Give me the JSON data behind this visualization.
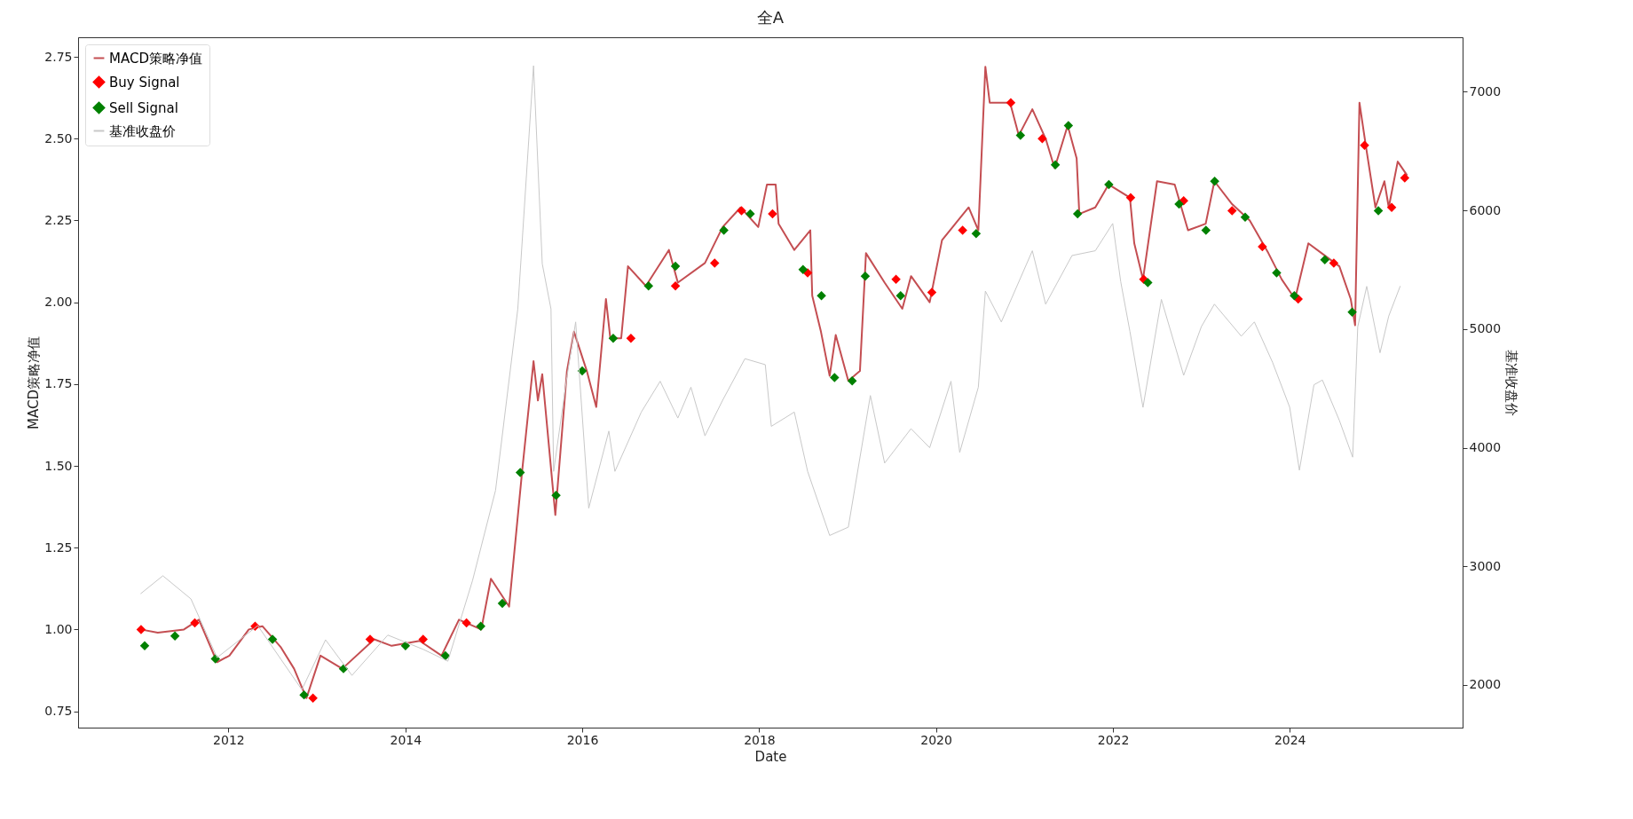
{
  "chart_data": {
    "type": "line",
    "title": "全A",
    "xlabel": "Date",
    "ylabel": "MACD策略净值",
    "y2label": "基准收盘价",
    "legend": "top left",
    "xlim": [
      "2010-04-20",
      "2025-12-15"
    ],
    "xticks": [
      "2012",
      "2014",
      "2016",
      "2018",
      "2020",
      "2022",
      "2024"
    ],
    "ylim": [
      0.7,
      2.81
    ],
    "yticks": [
      {
        "value": 0.75,
        "label": "0.75"
      },
      {
        "value": 1,
        "label": "1.00"
      },
      {
        "value": 1.25,
        "label": "1.25"
      },
      {
        "value": 1.5,
        "label": "1.50"
      },
      {
        "value": 1.75,
        "label": "1.75"
      },
      {
        "value": 2,
        "label": "2.00"
      },
      {
        "value": 2.25,
        "label": "2.25"
      },
      {
        "value": 2.5,
        "label": "2.50"
      },
      {
        "value": 2.75,
        "label": "2.75"
      }
    ],
    "y2lim": [
      1640,
      7460
    ],
    "y2ticks": [
      2000,
      3000,
      4000,
      5000,
      6000,
      7000
    ],
    "series": [
      {
        "name": "MACD策略净值",
        "color": "#c44e52",
        "x": [
          "2011-01-04",
          "2011-03-15",
          "2011-07-01",
          "2011-09-01",
          "2011-11-15",
          "2012-01-05",
          "2012-03-25",
          "2012-05-20",
          "2012-08-05",
          "2012-09-28",
          "2012-11-18",
          "2013-01-15",
          "2013-04-15",
          "2013-08-25",
          "2013-11-05",
          "2014-03-01",
          "2014-05-30",
          "2014-08-10",
          "2014-11-10",
          "2014-12-20",
          "2015-03-05",
          "2015-04-28",
          "2015-06-14",
          "2015-07-02",
          "2015-07-20",
          "2015-09-12",
          "2015-10-30",
          "2015-11-28",
          "2016-01-20",
          "2016-02-28",
          "2016-04-08",
          "2016-04-26",
          "2016-06-10",
          "2016-07-08",
          "2016-09-20",
          "2016-12-24",
          "2017-01-30",
          "2017-05-22",
          "2017-08-03",
          "2017-10-16",
          "2017-12-28",
          "2018-02-02",
          "2018-03-10",
          "2018-03-22",
          "2018-05-26",
          "2018-07-31",
          "2018-08-08",
          "2018-09-13",
          "2018-10-19",
          "2018-11-13",
          "2019-01-04",
          "2019-02-21",
          "2019-03-18",
          "2019-06-03",
          "2019-08-15",
          "2019-09-20",
          "2019-12-06",
          "2020-01-26",
          "2020-03-21",
          "2020-05-15",
          "2020-06-24",
          "2020-07-23",
          "2020-08-10",
          "2020-11-02",
          "2020-12-08",
          "2021-02-02",
          "2021-03-29",
          "2021-05-05",
          "2021-06-28",
          "2021-08-04",
          "2021-08-15",
          "2021-10-20",
          "2021-12-14",
          "2022-03-12",
          "2022-03-30",
          "2022-05-05",
          "2022-07-02",
          "2022-09-13",
          "2022-11-07",
          "2023-01-19",
          "2023-02-24",
          "2023-05-08",
          "2023-07-20",
          "2023-10-05",
          "2023-11-29",
          "2024-01-23",
          "2024-03-18",
          "2024-05-12",
          "2024-07-24",
          "2024-09-09",
          "2024-09-27",
          "2024-10-15",
          "2024-11-10",
          "2024-12-20",
          "2025-01-26",
          "2025-02-13",
          "2025-03-22",
          "2025-04-28"
        ],
        "values": [
          1.0,
          0.99,
          1.0,
          1.03,
          0.9,
          0.92,
          1.0,
          1.01,
          0.945,
          0.88,
          0.79,
          0.92,
          0.88,
          0.97,
          0.95,
          0.965,
          0.92,
          1.03,
          1.0,
          1.155,
          1.07,
          1.485,
          1.82,
          1.7,
          1.78,
          1.35,
          1.79,
          1.91,
          1.79,
          1.68,
          2.01,
          1.89,
          1.89,
          2.11,
          2.05,
          2.16,
          2.06,
          2.12,
          2.23,
          2.29,
          2.23,
          2.36,
          2.36,
          2.24,
          2.16,
          2.22,
          2.02,
          1.91,
          1.775,
          1.9,
          1.76,
          1.79,
          2.15,
          2.06,
          1.98,
          2.08,
          2.0,
          2.19,
          2.24,
          2.29,
          2.22,
          2.72,
          2.61,
          2.61,
          2.51,
          2.59,
          2.5,
          2.41,
          2.54,
          2.44,
          2.27,
          2.29,
          2.36,
          2.32,
          2.18,
          2.07,
          2.37,
          2.36,
          2.22,
          2.24,
          2.37,
          2.3,
          2.25,
          2.15,
          2.07,
          2.01,
          2.18,
          2.15,
          2.11,
          2.01,
          1.93,
          2.61,
          2.48,
          2.29,
          2.37,
          2.29,
          2.43,
          2.39
        ]
      },
      {
        "name": "Buy Signal",
        "type": "scatter",
        "marker": "diamond",
        "color": "#ff0000",
        "x": [
          "2011-01-05",
          "2011-08-15",
          "2012-04-20",
          "2012-12-15",
          "2013-08-08",
          "2014-03-15",
          "2014-09-10",
          "2016-07-20",
          "2017-01-20",
          "2017-07-01",
          "2017-10-20",
          "2018-02-25",
          "2018-07-20",
          "2019-07-20",
          "2019-12-15",
          "2020-04-20",
          "2020-11-05",
          "2021-03-15",
          "2022-03-15",
          "2022-05-08",
          "2022-10-20",
          "2023-05-08",
          "2023-09-10",
          "2024-02-05",
          "2024-07-01",
          "2024-11-05",
          "2025-02-25",
          "2025-04-20"
        ],
        "values": [
          1.0,
          1.02,
          1.01,
          0.79,
          0.97,
          0.97,
          1.02,
          1.89,
          2.05,
          2.12,
          2.28,
          2.27,
          2.09,
          2.07,
          2.03,
          2.22,
          2.61,
          2.5,
          2.32,
          2.07,
          2.31,
          2.28,
          2.17,
          2.01,
          2.12,
          2.48,
          2.29,
          2.38
        ]
      },
      {
        "name": "Sell Signal",
        "type": "scatter",
        "marker": "diamond",
        "color": "#008000",
        "x": [
          "2011-01-20",
          "2011-05-25",
          "2011-11-08",
          "2012-07-01",
          "2012-11-08",
          "2013-04-20",
          "2014-01-01",
          "2014-06-15",
          "2014-11-08",
          "2015-02-05",
          "2015-04-20",
          "2015-09-15",
          "2016-01-01",
          "2016-05-08",
          "2016-10-01",
          "2017-01-20",
          "2017-08-08",
          "2017-11-25",
          "2018-07-01",
          "2018-09-15",
          "2018-11-08",
          "2019-01-20",
          "2019-03-15",
          "2019-08-08",
          "2020-06-15",
          "2020-12-15",
          "2021-05-08",
          "2021-07-01",
          "2021-08-08",
          "2021-12-15",
          "2022-05-25",
          "2022-10-01",
          "2023-01-20",
          "2023-02-25",
          "2023-07-01",
          "2023-11-08",
          "2024-01-20",
          "2024-05-25",
          "2024-09-15",
          "2025-01-01"
        ],
        "values": [
          0.95,
          0.98,
          0.91,
          0.97,
          0.8,
          0.88,
          0.95,
          0.92,
          1.01,
          1.08,
          1.48,
          1.41,
          1.79,
          1.89,
          2.05,
          2.11,
          2.22,
          2.27,
          2.1,
          2.02,
          1.77,
          1.76,
          2.08,
          2.02,
          2.21,
          2.51,
          2.42,
          2.54,
          2.27,
          2.36,
          2.06,
          2.3,
          2.22,
          2.37,
          2.26,
          2.09,
          2.02,
          2.13,
          1.97,
          2.28
        ]
      },
      {
        "name": "基准收盘价",
        "axis": "y2",
        "color": "#c8c8c8",
        "x": [
          "2011-01-04",
          "2011-04-05",
          "2011-07-30",
          "2011-11-15",
          "2012-05-01",
          "2012-10-30",
          "2013-02-05",
          "2013-05-25",
          "2013-10-20",
          "2014-03-15",
          "2014-06-25",
          "2014-10-05",
          "2015-01-08",
          "2015-04-10",
          "2015-06-14",
          "2015-07-20",
          "2015-08-25",
          "2015-09-05",
          "2015-10-30",
          "2015-12-05",
          "2016-01-28",
          "2016-04-20",
          "2016-05-15",
          "2016-09-01",
          "2016-11-18",
          "2017-01-30",
          "2017-03-25",
          "2017-05-22",
          "2017-08-03",
          "2017-11-03",
          "2018-01-26",
          "2018-02-20",
          "2018-05-26",
          "2018-07-20",
          "2018-10-19",
          "2019-01-04",
          "2019-04-05",
          "2019-06-03",
          "2019-09-20",
          "2019-12-06",
          "2020-03-03",
          "2020-04-08",
          "2020-06-24",
          "2020-07-23",
          "2020-09-27",
          "2021-02-02",
          "2021-03-29",
          "2021-07-16",
          "2021-10-20",
          "2021-12-31",
          "2022-02-02",
          "2022-03-12",
          "2022-05-05",
          "2022-07-20",
          "2022-10-20",
          "2023-01-01",
          "2023-02-24",
          "2023-06-15",
          "2023-08-08",
          "2023-10-22",
          "2024-01-01",
          "2024-02-10",
          "2024-04-10",
          "2024-05-15",
          "2024-07-24",
          "2024-09-17",
          "2024-10-08",
          "2024-11-14",
          "2025-01-08",
          "2025-02-13",
          "2025-04-01"
        ],
        "values": [
          2770,
          2920,
          2725,
          2230,
          2500,
          1960,
          2380,
          2080,
          2420,
          2300,
          2200,
          2880,
          3640,
          5170,
          7220,
          5550,
          5170,
          3800,
          4600,
          5060,
          3490,
          4140,
          3800,
          4300,
          4560,
          4250,
          4510,
          4100,
          4400,
          4750,
          4700,
          4180,
          4300,
          3800,
          3260,
          3330,
          4440,
          3870,
          4160,
          4000,
          4560,
          3960,
          4510,
          5320,
          5060,
          5660,
          5210,
          5620,
          5660,
          5890,
          5400,
          4980,
          4340,
          5250,
          4610,
          5020,
          5210,
          4940,
          5060,
          4720,
          4340,
          3810,
          4530,
          4570,
          4230,
          3920,
          5020,
          5360,
          4800,
          5110,
          5360
        ]
      }
    ]
  }
}
